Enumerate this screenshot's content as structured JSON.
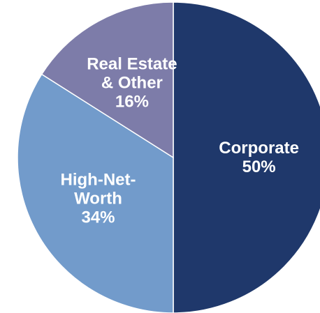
{
  "chart_data": {
    "type": "pie",
    "categories": [
      "Corporate",
      "High-Net-Worth",
      "Real Estate & Other"
    ],
    "values": [
      50,
      34,
      16
    ],
    "value_labels": [
      "50%",
      "34%",
      "16%"
    ],
    "colors": [
      "#1f386b",
      "#729bcb",
      "#7d7ca9"
    ]
  }
}
